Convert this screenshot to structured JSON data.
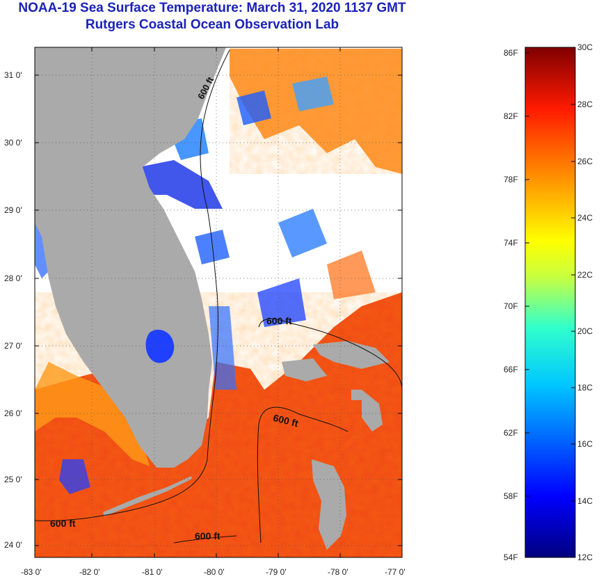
{
  "title": "NOAA-19 Sea Surface Temperature:  March 31, 2020 1137 GMT",
  "subtitle": "Rutgers Coastal Ocean Observation Lab",
  "axes": {
    "lat_ticks": [
      "31 0'",
      "30 0'",
      "29 0'",
      "28 0'",
      "27 0'",
      "26 0'",
      "25 0'",
      "24 0'"
    ],
    "lon_ticks": [
      "-83 0'",
      "-82 0'",
      "-81 0'",
      "-80 0'",
      "-79 0'",
      "-78 0'",
      "-77 0'"
    ],
    "lat_range": [
      23.85,
      31.45
    ],
    "lon_range": [
      -83.0,
      -77.1
    ],
    "grid": "dotted"
  },
  "contour_labels": [
    "600 ft",
    "600 ft",
    "600 ft",
    "600 ft"
  ],
  "colorbar": {
    "f_labels": [
      "86F",
      "82F",
      "78F",
      "74F",
      "70F",
      "66F",
      "62F",
      "58F",
      "54F"
    ],
    "c_labels": [
      "30C",
      "28C",
      "26C",
      "24C",
      "22C",
      "20C",
      "18C",
      "16C",
      "14C",
      "12C"
    ],
    "range_c": [
      12,
      30
    ],
    "colors": [
      "#00007f",
      "#0000ff",
      "#0080ff",
      "#00ffff",
      "#80ff80",
      "#ffff00",
      "#ff8000",
      "#ff0000",
      "#7f0000"
    ]
  },
  "colors": {
    "title": "#1a22b8",
    "land": "#aaaaaa",
    "cloud": "#ffffff",
    "warm_water": "#f04818"
  }
}
